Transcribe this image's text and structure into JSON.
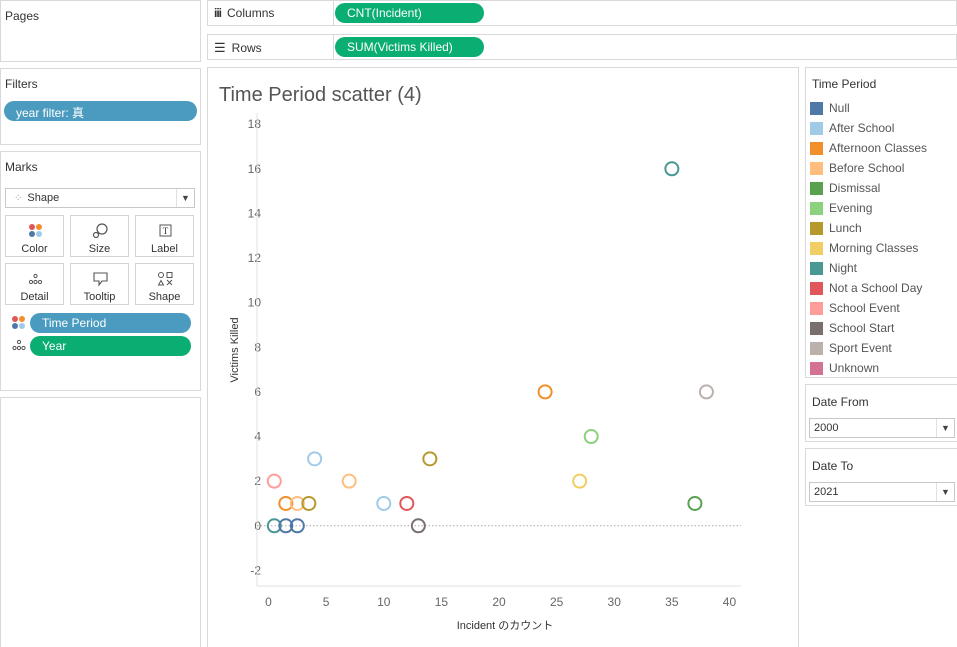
{
  "pages": {
    "title": "Pages"
  },
  "shelves": {
    "columns": {
      "label": "Columns",
      "pill": "CNT(Incident)"
    },
    "rows": {
      "label": "Rows",
      "pill": "SUM(Victims Killed)"
    }
  },
  "filters": {
    "title": "Filters",
    "pill": "year filter: 真"
  },
  "marks": {
    "title": "Marks",
    "mark_type": "Shape",
    "buttons": {
      "color": "Color",
      "size": "Size",
      "label": "Label",
      "detail": "Detail",
      "tooltip": "Tooltip",
      "shape": "Shape"
    },
    "fields": {
      "color_field": "Time Period",
      "detail_field": "Year"
    }
  },
  "legend": {
    "title": "Time Period",
    "items": [
      {
        "label": "Null",
        "color": "#4e79a7"
      },
      {
        "label": "After School",
        "color": "#a0cbe8"
      },
      {
        "label": "Afternoon Classes",
        "color": "#f28e2b"
      },
      {
        "label": "Before School",
        "color": "#ffbe7d"
      },
      {
        "label": "Dismissal",
        "color": "#59a14f"
      },
      {
        "label": "Evening",
        "color": "#8cd17d"
      },
      {
        "label": "Lunch",
        "color": "#b6992d"
      },
      {
        "label": "Morning Classes",
        "color": "#f1ce63"
      },
      {
        "label": "Night",
        "color": "#499894"
      },
      {
        "label": "Not a School Day",
        "color": "#e15759"
      },
      {
        "label": "School Event",
        "color": "#ff9d9a"
      },
      {
        "label": "School Start",
        "color": "#79706e"
      },
      {
        "label": "Sport Event",
        "color": "#bab0ac"
      },
      {
        "label": "Unknown",
        "color": "#d37295"
      }
    ]
  },
  "date_from": {
    "title": "Date From",
    "value": "2000"
  },
  "date_to": {
    "title": "Date To",
    "value": "2021"
  },
  "chart_data": {
    "type": "scatter",
    "title": "Time Period scatter (4)",
    "xlabel": "Incident のカウント",
    "ylabel": "Victims Killed",
    "xlim": [
      -1,
      41
    ],
    "ylim": [
      -2.7,
      18.5
    ],
    "xticks": [
      0,
      5,
      10,
      15,
      20,
      25,
      30,
      35,
      40
    ],
    "yticks": [
      -2,
      0,
      2,
      4,
      6,
      8,
      10,
      12,
      14,
      16,
      18
    ],
    "grid": false,
    "zero_line": true,
    "points": [
      {
        "x": 35,
        "y": 16,
        "series": "Night"
      },
      {
        "x": 24,
        "y": 6,
        "series": "Afternoon Classes"
      },
      {
        "x": 38,
        "y": 6,
        "series": "Sport Event"
      },
      {
        "x": 28,
        "y": 4,
        "series": "Evening"
      },
      {
        "x": 14,
        "y": 3,
        "series": "Lunch"
      },
      {
        "x": 4,
        "y": 3,
        "series": "After School"
      },
      {
        "x": 0.5,
        "y": 2,
        "series": "School Event"
      },
      {
        "x": 7,
        "y": 2,
        "series": "Before School"
      },
      {
        "x": 27,
        "y": 2,
        "series": "Morning Classes"
      },
      {
        "x": 1.5,
        "y": 1,
        "series": "Afternoon Classes"
      },
      {
        "x": 2.5,
        "y": 1,
        "series": "Before School"
      },
      {
        "x": 3.5,
        "y": 1,
        "series": "Lunch"
      },
      {
        "x": 10,
        "y": 1,
        "series": "After School"
      },
      {
        "x": 12,
        "y": 1,
        "series": "Not a School Day"
      },
      {
        "x": 37,
        "y": 1,
        "series": "Dismissal"
      },
      {
        "x": 0.5,
        "y": 0,
        "series": "Night"
      },
      {
        "x": 1.5,
        "y": 0,
        "series": "Null"
      },
      {
        "x": 2.5,
        "y": 0,
        "series": "Null"
      },
      {
        "x": 13,
        "y": 0,
        "series": "School Start"
      }
    ]
  }
}
